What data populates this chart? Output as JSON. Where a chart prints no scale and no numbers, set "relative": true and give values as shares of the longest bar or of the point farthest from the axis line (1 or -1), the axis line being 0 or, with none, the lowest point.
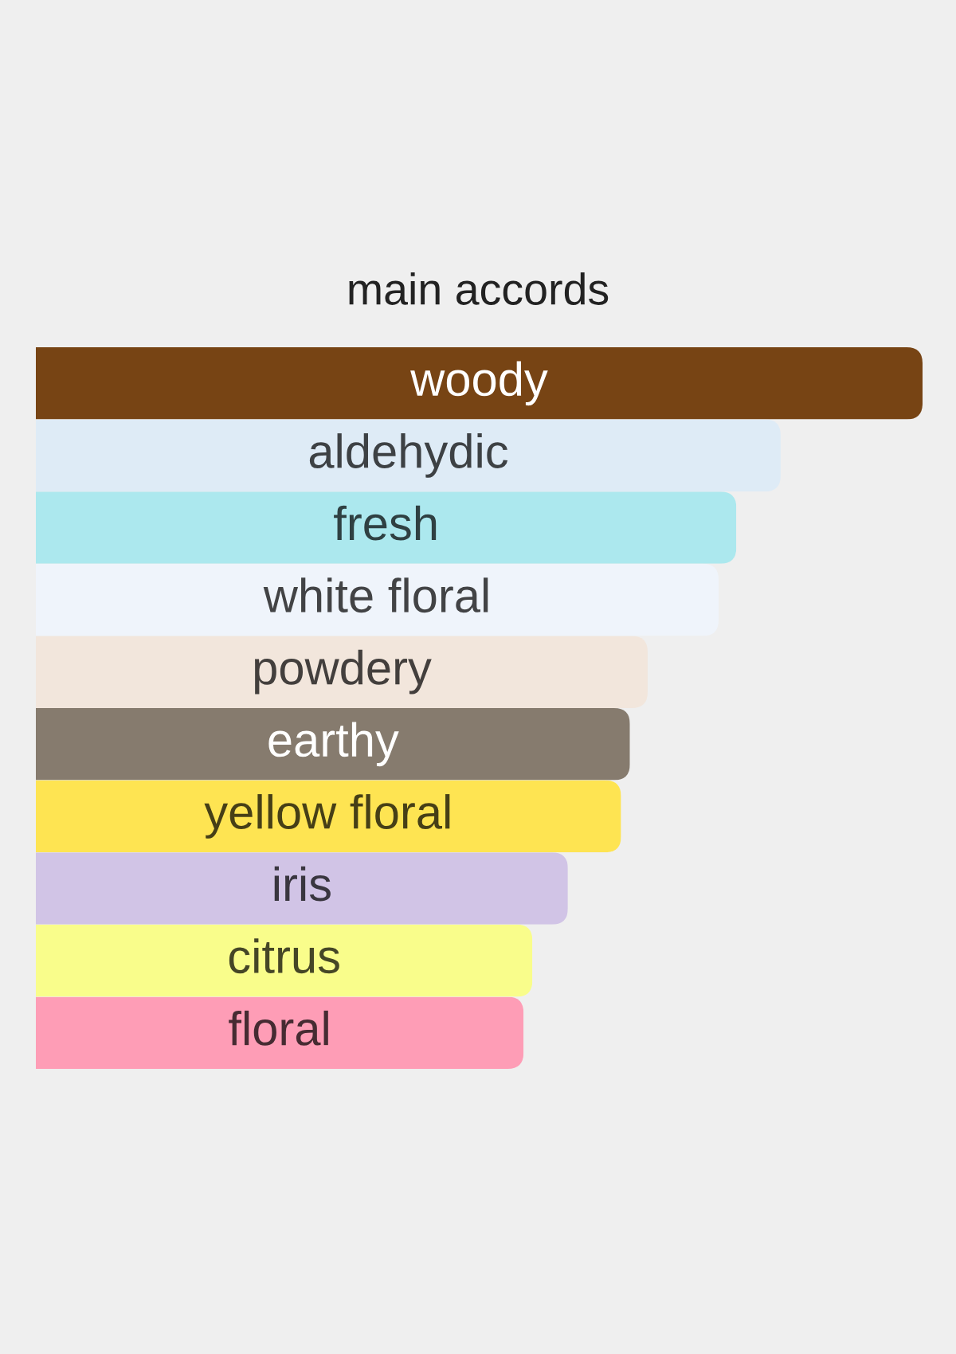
{
  "chart_data": {
    "type": "bar",
    "title": "main accords",
    "orientation": "horizontal",
    "relative": true,
    "categories": [
      "woody",
      "aldehydic",
      "fresh",
      "white floral",
      "powdery",
      "earthy",
      "yellow floral",
      "iris",
      "citrus",
      "floral"
    ],
    "values": [
      1,
      0.84,
      0.79,
      0.77,
      0.69,
      0.67,
      0.66,
      0.6,
      0.56,
      0.55
    ],
    "colors": [
      "#774414",
      "#deebf6",
      "#ace8ee",
      "#eff4fb",
      "#f2e6dc",
      "#867b6e",
      "#fee452",
      "#d1c4e6",
      "#f9fd8b",
      "#fe9db6"
    ]
  }
}
